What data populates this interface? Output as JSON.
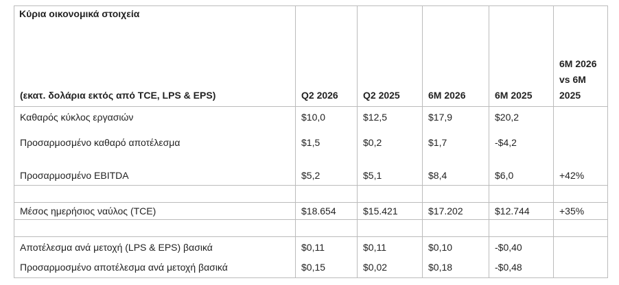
{
  "header": {
    "title": "Κύρια οικονομικά στοιχεία"
  },
  "table": {
    "columns": [
      "(εκατ. δολάρια εκτός από TCE, LPS & EPS)",
      "Q2 2026",
      "Q2 2025",
      "6M 2026",
      "6M 2025",
      "6M 2026 vs 6M 2025"
    ],
    "groups": [
      [
        [
          "Καθαρός κύκλος εργασιών",
          "$10,0",
          "$12,5",
          "$17,9",
          "$20,2",
          null
        ],
        [
          "Προσαρμοσμένο καθαρό αποτέλεσμα",
          "$1,5",
          "$0,2",
          "$1,7",
          "-$4,2",
          null
        ],
        [
          "Προσαρμοσμένο EBITDA",
          "$5,2",
          "$5,1",
          "$8,4",
          "$6,0",
          "+42%"
        ]
      ],
      [
        [
          "Μέσος ημερήσιος ναύλος (TCE)",
          "$18.654",
          "$15.421",
          "$17.202",
          "$12.744",
          "+35%"
        ]
      ],
      [
        [
          "Αποτέλεσμα ανά μετοχή (LPS & EPS) βασικά",
          "$0,11",
          "$0,11",
          "$0,10",
          "-$0,40",
          null
        ],
        [
          "Προσαρμοσμένο αποτέλεσμα ανά μετοχή βασικά",
          "$0,15",
          "$0,02",
          "$0,18",
          "-$0,48",
          null
        ]
      ]
    ]
  }
}
